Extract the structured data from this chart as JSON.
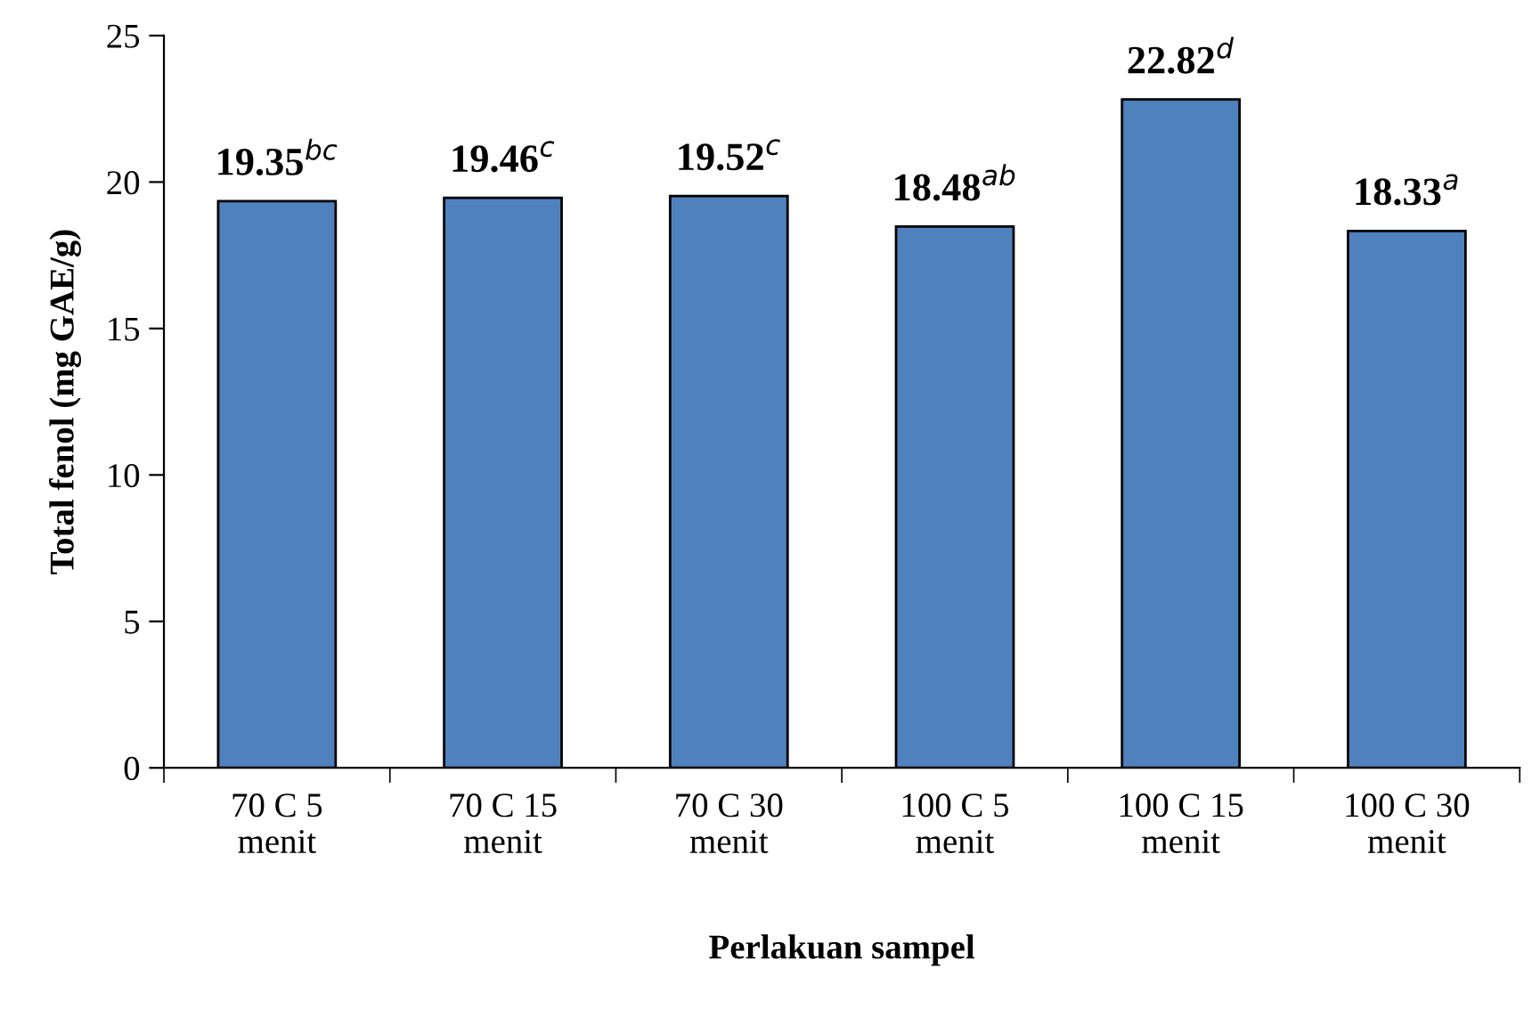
{
  "chart_data": {
    "type": "bar",
    "xlabel": "Perlakuan sampel",
    "ylabel": "Total fenol (mg GAE/g)",
    "categories": [
      "70 C 5\nmenit",
      "70 C 15\nmenit",
      "70 C 30\nmenit",
      "100 C 5\nmenit",
      "100 C 15\nmenit",
      "100 C 30\nmenit"
    ],
    "values": [
      19.35,
      19.46,
      19.52,
      18.48,
      22.82,
      18.33
    ],
    "value_labels": [
      "19.35$^{bc}$",
      "19.46$^{c}$",
      "19.52$^{c}$",
      "18.48$^{ab}$",
      "22.82$^{d}$",
      "18.33$^{a}$"
    ],
    "color": "#4f81bd",
    "ylim": [
      0,
      25
    ],
    "yticks": [
      0,
      5,
      10,
      15,
      20,
      25
    ],
    "grid": false,
    "legend": false
  }
}
